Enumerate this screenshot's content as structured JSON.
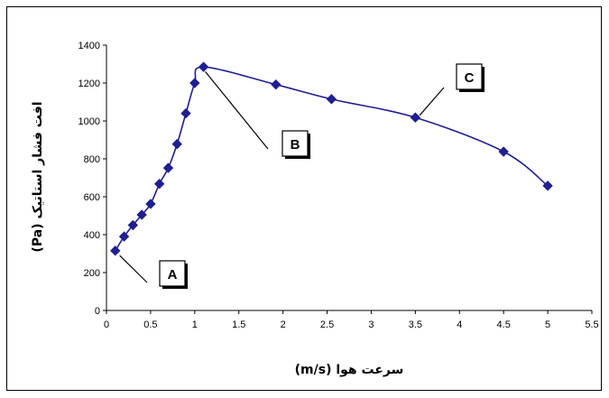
{
  "chart_data": {
    "type": "scatter",
    "xlabel": "سرعت هوا (m/s)",
    "ylabel": "افت فشار استاتیک (Pa)",
    "xlim": [
      0,
      5.5
    ],
    "ylim": [
      0,
      1400
    ],
    "x_ticks": [
      "0",
      "0.5",
      "1",
      "1.5",
      "2",
      "2.5",
      "3",
      "3.5",
      "4",
      "4.5",
      "5",
      "5.5"
    ],
    "y_ticks": [
      "0",
      "200",
      "400",
      "600",
      "800",
      "1000",
      "1200",
      "1400"
    ],
    "grid": false,
    "line_style": "smooth",
    "marker": "diamond",
    "color": "#1f1f8f",
    "series": [
      {
        "points": [
          [
            0.1,
            315
          ],
          [
            0.2,
            390
          ],
          [
            0.3,
            450
          ],
          [
            0.4,
            505
          ],
          [
            0.5,
            562
          ],
          [
            0.6,
            668
          ],
          [
            0.7,
            752
          ],
          [
            0.8,
            878
          ],
          [
            0.9,
            1040
          ],
          [
            1.0,
            1200
          ],
          [
            1.1,
            1285
          ],
          [
            1.92,
            1192
          ],
          [
            2.55,
            1115
          ],
          [
            3.5,
            1018
          ],
          [
            4.5,
            838
          ],
          [
            5.0,
            658
          ]
        ]
      }
    ],
    "annotations": [
      {
        "label": "A",
        "point": [
          0.15,
          290
        ]
      },
      {
        "label": "B",
        "point": [
          1.12,
          1260
        ]
      },
      {
        "label": "C",
        "point": [
          3.55,
          1030
        ]
      }
    ]
  }
}
